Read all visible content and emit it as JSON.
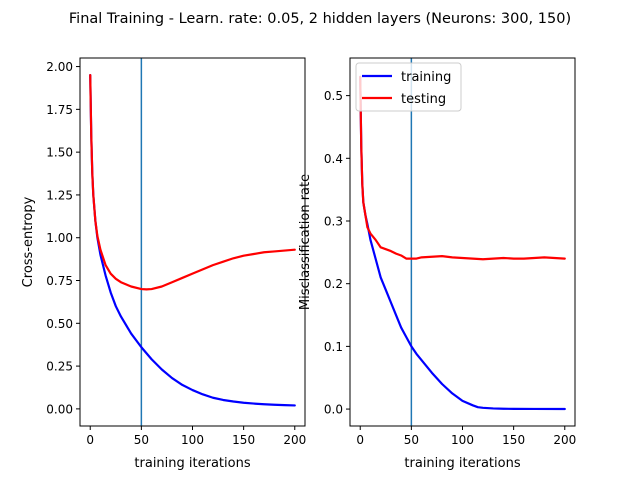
{
  "figure": {
    "title": "Final Training - Learn. rate: 0.05, 2 hidden layers (Neurons: 300, 150)"
  },
  "chart_data": [
    {
      "type": "line",
      "title": "",
      "xlabel": "training iterations",
      "ylabel": "Cross-entropy",
      "xlim": [
        -10,
        210
      ],
      "ylim": [
        -0.1,
        2.05
      ],
      "grid": false,
      "legend": null,
      "xticks": [
        0,
        50,
        100,
        150,
        200
      ],
      "xtick_labels": [
        "0",
        "50",
        "100",
        "150",
        "200"
      ],
      "yticks": [
        0,
        0.25,
        0.5,
        0.75,
        1.0,
        1.25,
        1.5,
        1.75,
        2.0
      ],
      "ytick_labels": [
        "0.00",
        "0.25",
        "0.50",
        "0.75",
        "1.00",
        "1.25",
        "1.50",
        "1.75",
        "2.00"
      ],
      "vline": {
        "x": 50,
        "color": "#1f77b4"
      },
      "series": [
        {
          "color": "#0000ff",
          "x": [
            0,
            1,
            2,
            3,
            5,
            7,
            10,
            15,
            20,
            25,
            30,
            40,
            50,
            60,
            70,
            80,
            90,
            100,
            110,
            120,
            130,
            140,
            150,
            160,
            170,
            180,
            190,
            200
          ],
          "y": [
            1.95,
            1.6,
            1.38,
            1.25,
            1.1,
            1.0,
            0.9,
            0.78,
            0.68,
            0.6,
            0.54,
            0.44,
            0.36,
            0.29,
            0.23,
            0.18,
            0.14,
            0.11,
            0.085,
            0.065,
            0.052,
            0.043,
            0.036,
            0.031,
            0.027,
            0.024,
            0.022,
            0.02
          ]
        },
        {
          "color": "#ff0000",
          "x": [
            0,
            1,
            2,
            3,
            5,
            7,
            10,
            15,
            20,
            25,
            30,
            40,
            50,
            55,
            60,
            70,
            80,
            90,
            100,
            110,
            120,
            130,
            140,
            150,
            160,
            170,
            180,
            190,
            200
          ],
          "y": [
            1.95,
            1.6,
            1.38,
            1.25,
            1.1,
            1.01,
            0.93,
            0.84,
            0.79,
            0.76,
            0.74,
            0.715,
            0.7,
            0.698,
            0.7,
            0.715,
            0.74,
            0.765,
            0.79,
            0.815,
            0.84,
            0.86,
            0.88,
            0.895,
            0.905,
            0.915,
            0.92,
            0.925,
            0.93
          ]
        }
      ]
    },
    {
      "type": "line",
      "title": "",
      "xlabel": "training iterations",
      "ylabel": "Misclassification rate",
      "xlim": [
        -10,
        210
      ],
      "ylim": [
        -0.027,
        0.56
      ],
      "grid": false,
      "legend": "top-left",
      "xticks": [
        0,
        50,
        100,
        150,
        200
      ],
      "xtick_labels": [
        "0",
        "50",
        "100",
        "150",
        "200"
      ],
      "yticks": [
        0.0,
        0.1,
        0.2,
        0.3,
        0.4,
        0.5
      ],
      "ytick_labels": [
        "0.0",
        "0.1",
        "0.2",
        "0.3",
        "0.4",
        "0.5"
      ],
      "vline": {
        "x": 50,
        "color": "#1f77b4"
      },
      "series": [
        {
          "name": "training",
          "color": "#0000ff",
          "x": [
            0,
            1,
            2,
            3,
            5,
            7,
            10,
            15,
            20,
            25,
            30,
            35,
            40,
            45,
            50,
            55,
            60,
            65,
            70,
            80,
            90,
            100,
            110,
            115,
            120,
            130,
            140,
            150,
            170,
            200
          ],
          "y": [
            0.53,
            0.42,
            0.36,
            0.33,
            0.31,
            0.295,
            0.27,
            0.24,
            0.21,
            0.19,
            0.17,
            0.15,
            0.13,
            0.115,
            0.1,
            0.088,
            0.078,
            0.068,
            0.058,
            0.04,
            0.025,
            0.013,
            0.006,
            0.003,
            0.002,
            0.001,
            0.0005,
            0.0003,
            0.0002,
            0.0001
          ]
        },
        {
          "name": "testing",
          "color": "#ff0000",
          "x": [
            0,
            1,
            2,
            3,
            5,
            7,
            10,
            15,
            20,
            25,
            30,
            35,
            40,
            45,
            50,
            55,
            60,
            70,
            80,
            90,
            100,
            110,
            120,
            130,
            140,
            150,
            160,
            170,
            180,
            190,
            200
          ],
          "y": [
            0.53,
            0.42,
            0.36,
            0.33,
            0.31,
            0.29,
            0.28,
            0.27,
            0.258,
            0.255,
            0.252,
            0.248,
            0.245,
            0.24,
            0.24,
            0.24,
            0.242,
            0.243,
            0.244,
            0.242,
            0.241,
            0.24,
            0.239,
            0.24,
            0.241,
            0.24,
            0.24,
            0.241,
            0.242,
            0.241,
            0.24
          ]
        }
      ]
    }
  ]
}
